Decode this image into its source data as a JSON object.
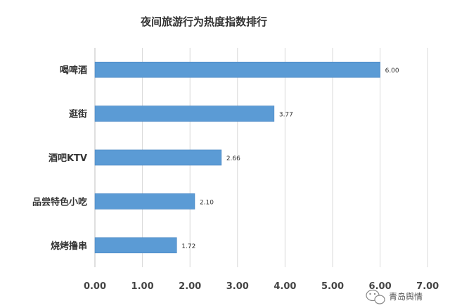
{
  "chart_data": {
    "type": "bar",
    "orientation": "horizontal",
    "title": "夜间旅游行为热度指数排行",
    "categories": [
      "喝啤酒",
      "逛街",
      "酒吧KTV",
      "品尝特色小吃",
      "烧烤撸串"
    ],
    "values": [
      6.0,
      3.77,
      2.66,
      2.1,
      1.72
    ],
    "data_labels": [
      "6.00",
      "3.77",
      "2.66",
      "2.10",
      "1.72"
    ],
    "x_ticks": [
      "0.00",
      "1.00",
      "2.00",
      "3.00",
      "4.00",
      "5.00",
      "6.00",
      "7.00"
    ],
    "xlim": [
      0,
      7
    ],
    "grid": true,
    "legend": "none",
    "bar_color": "#5b9bd5",
    "grid_color": "#d9d9d9"
  },
  "watermark": {
    "text": "青岛舆情",
    "icon": "wechat-icon"
  }
}
